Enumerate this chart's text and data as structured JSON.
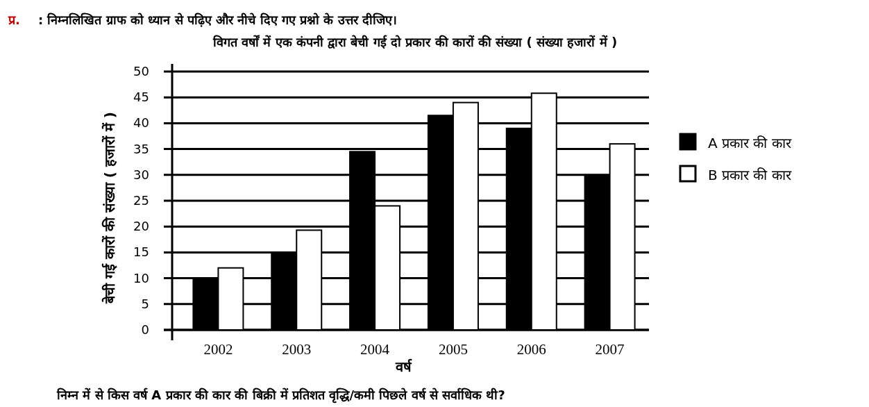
{
  "chart_data": {
    "type": "bar",
    "title": "विगत वर्षों में एक कंपनी द्वारा बेची गई दो प्रकार की कारों की संख्या ( संख्या हजारों में )",
    "xlabel": "वर्ष",
    "ylabel": "बेची गई कारों की संख्या ( हजारों में )",
    "annotations": [
      "प्र.",
      ": निम्नलिखित ग्राफ को ध्यान से पढ़िए और नीचे दिए गए प्रश्नो के उत्तर दीजिए।",
      "निम्न में से किस वर्ष A  प्रकार की कार की बिक्री में प्रतिशत वृद्धि/कमी पिछले वर्ष से सर्वाधिक थी?"
    ],
    "categories": [
      "2002",
      "2003",
      "2004",
      "2005",
      "2006",
      "2007"
    ],
    "series": [
      {
        "name": "A प्रकार की कार",
        "color": "#000000",
        "values": [
          10,
          15,
          34.5,
          41.5,
          39,
          30
        ]
      },
      {
        "name": "B प्रकार की कार",
        "color": "#ffffff",
        "values": [
          12,
          19.3,
          24,
          44,
          45.8,
          36
        ]
      }
    ],
    "ylim": [
      0,
      50
    ],
    "yticks": [
      0,
      5,
      10,
      15,
      20,
      25,
      30,
      35,
      40,
      45,
      50
    ],
    "grid": "y",
    "legend": "right"
  }
}
